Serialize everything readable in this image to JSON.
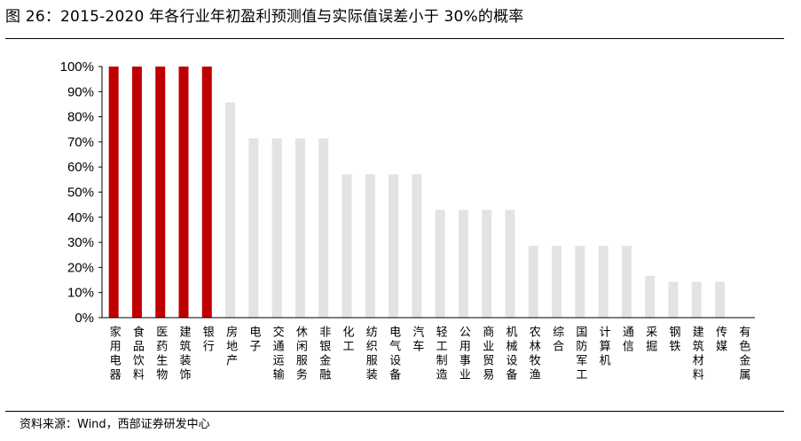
{
  "figure": {
    "title": "图 26：2015-2020 年各行业年初盈利预测值与实际值误差小于 30%的概率",
    "source": "资料来源：Wind，西部证券研发中心"
  },
  "colors": {
    "highlight": "#C00000",
    "normal": "#E3E3E3"
  },
  "chart_data": {
    "type": "bar",
    "title": "",
    "xlabel": "",
    "ylabel": "",
    "ylim": [
      0,
      100
    ],
    "yticks": [
      "0%",
      "10%",
      "20%",
      "30%",
      "40%",
      "50%",
      "60%",
      "70%",
      "80%",
      "90%",
      "100%"
    ],
    "grid": false,
    "categories": [
      "家用电器",
      "食品饮料",
      "医药生物",
      "建筑装饰",
      "银行",
      "房地产",
      "电子",
      "交通运输",
      "休闲服务",
      "非银金融",
      "化工",
      "纺织服装",
      "电气设备",
      "汽车",
      "轻工制造",
      "公用事业",
      "商业贸易",
      "机械设备",
      "农林牧渔",
      "综合",
      "国防军工",
      "计算机",
      "通信",
      "采掘",
      "钢铁",
      "建筑材料",
      "传媒",
      "有色金属"
    ],
    "values": [
      100,
      100,
      100,
      100,
      100,
      85.7,
      71.4,
      71.4,
      71.4,
      71.4,
      57.1,
      57.1,
      57.1,
      57.1,
      42.9,
      42.9,
      42.9,
      42.9,
      28.6,
      28.6,
      28.6,
      28.6,
      28.6,
      16.7,
      14.3,
      14.3,
      14.3,
      0
    ],
    "highlighted": [
      true,
      true,
      true,
      true,
      true,
      false,
      false,
      false,
      false,
      false,
      false,
      false,
      false,
      false,
      false,
      false,
      false,
      false,
      false,
      false,
      false,
      false,
      false,
      false,
      false,
      false,
      false,
      false
    ]
  }
}
